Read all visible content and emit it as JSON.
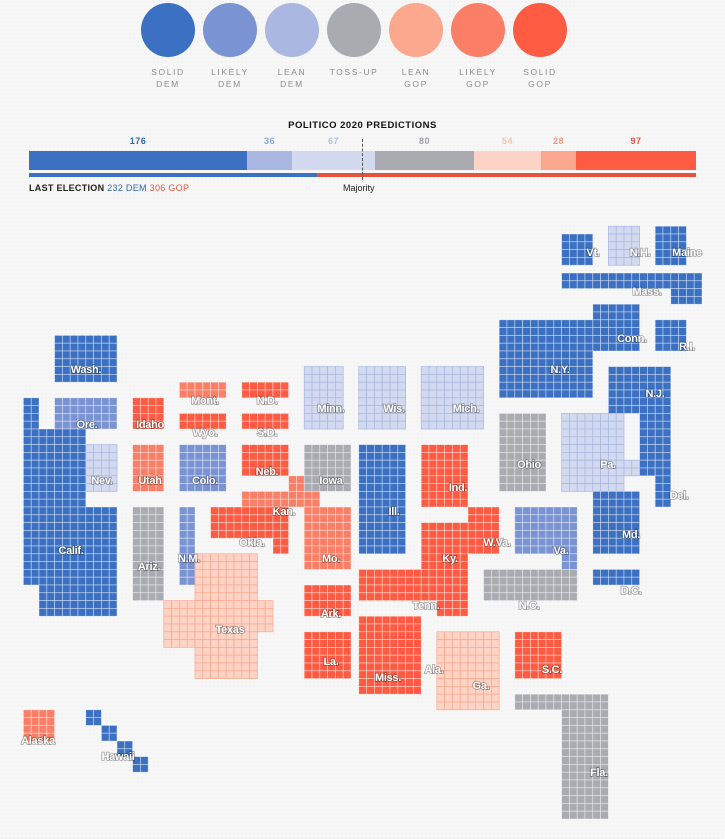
{
  "colors": {
    "solid_dem": "#3b70c2",
    "likely_dem": "#7993d3",
    "lean_dem": "#a9b7e1",
    "lean_dem_fill": "#d3daf0",
    "tossup": "#a9abb1",
    "lean_gop": "#fba88e",
    "lean_gop_fill": "#fdd3c5",
    "likely_gop": "#fb7f67",
    "solid_gop": "#fd5b42",
    "dem_text": "#2e66b8",
    "gop_text": "#e4543d"
  },
  "legend": [
    {
      "key": "solid_dem",
      "label": "SOLID\nDEM"
    },
    {
      "key": "likely_dem",
      "label": "LIKELY\nDEM"
    },
    {
      "key": "lean_dem",
      "label": "LEAN\nDEM"
    },
    {
      "key": "tossup",
      "label": "TOSS-UP"
    },
    {
      "key": "lean_gop",
      "label": "LEAN\nGOP"
    },
    {
      "key": "likely_gop",
      "label": "LIKELY\nGOP"
    },
    {
      "key": "solid_gop",
      "label": "SOLID\nGOP"
    }
  ],
  "predictions": {
    "title": "POLITICO 2020 PREDICTIONS",
    "segments": [
      {
        "key": "solid_dem",
        "count": "176"
      },
      {
        "key": "likely_dem",
        "count": "36"
      },
      {
        "key": "lean_dem",
        "count": "67"
      },
      {
        "key": "tossup",
        "count": "80"
      },
      {
        "key": "lean_gop",
        "count": "54"
      },
      {
        "key": "likely_gop",
        "count": "28"
      },
      {
        "key": "solid_gop",
        "count": "97"
      }
    ],
    "majority_label": "Majority",
    "last_election": {
      "prefix": "LAST ELECTION",
      "dem": "232 DEM",
      "gop": "306 GOP"
    }
  },
  "states": [
    {
      "name": "Vt.",
      "rating": "solid_dem"
    },
    {
      "name": "N.H.",
      "rating": "lean_dem"
    },
    {
      "name": "Maine",
      "rating": "solid_dem"
    },
    {
      "name": "Mass.",
      "rating": "solid_dem"
    },
    {
      "name": "Conn.",
      "rating": "solid_dem"
    },
    {
      "name": "R.I.",
      "rating": "solid_dem"
    },
    {
      "name": "N.Y.",
      "rating": "solid_dem"
    },
    {
      "name": "N.J.",
      "rating": "solid_dem"
    },
    {
      "name": "Wash.",
      "rating": "solid_dem"
    },
    {
      "name": "Mont.",
      "rating": "likely_gop"
    },
    {
      "name": "N.D.",
      "rating": "solid_gop"
    },
    {
      "name": "Minn.",
      "rating": "lean_dem"
    },
    {
      "name": "Wis.",
      "rating": "lean_dem"
    },
    {
      "name": "Mich.",
      "rating": "lean_dem"
    },
    {
      "name": "Ore.",
      "rating": "likely_dem"
    },
    {
      "name": "Idaho",
      "rating": "solid_gop"
    },
    {
      "name": "Wyo.",
      "rating": "solid_gop"
    },
    {
      "name": "S.D.",
      "rating": "solid_gop"
    },
    {
      "name": "Ohio",
      "rating": "tossup"
    },
    {
      "name": "Pa.",
      "rating": "lean_dem"
    },
    {
      "name": "Nev.",
      "rating": "lean_dem"
    },
    {
      "name": "Utah",
      "rating": "likely_gop"
    },
    {
      "name": "Colo.",
      "rating": "likely_dem"
    },
    {
      "name": "Neb.",
      "rating": "solid_gop"
    },
    {
      "name": "Iowa",
      "rating": "tossup"
    },
    {
      "name": "Ill.",
      "rating": "solid_dem"
    },
    {
      "name": "Ind.",
      "rating": "solid_gop"
    },
    {
      "name": "Del.",
      "rating": "solid_dem"
    },
    {
      "name": "Kan.",
      "rating": "likely_gop"
    },
    {
      "name": "Calif.",
      "rating": "solid_dem"
    },
    {
      "name": "Okla.",
      "rating": "solid_gop"
    },
    {
      "name": "W.Va.",
      "rating": "solid_gop"
    },
    {
      "name": "Md.",
      "rating": "solid_dem"
    },
    {
      "name": "Va.",
      "rating": "likely_dem"
    },
    {
      "name": "Mo.",
      "rating": "likely_gop"
    },
    {
      "name": "Ky.",
      "rating": "solid_gop"
    },
    {
      "name": "Ariz.",
      "rating": "tossup"
    },
    {
      "name": "N.M.",
      "rating": "likely_dem"
    },
    {
      "name": "D.C.",
      "rating": "solid_dem"
    },
    {
      "name": "Tenn.",
      "rating": "solid_gop"
    },
    {
      "name": "N.C.",
      "rating": "tossup"
    },
    {
      "name": "Ark.",
      "rating": "solid_gop"
    },
    {
      "name": "Texas",
      "rating": "lean_gop"
    },
    {
      "name": "S.C.",
      "rating": "solid_gop"
    },
    {
      "name": "La.",
      "rating": "solid_gop"
    },
    {
      "name": "Miss.",
      "rating": "solid_gop"
    },
    {
      "name": "Ala.",
      "rating": "solid_gop"
    },
    {
      "name": "Ga.",
      "rating": "lean_gop"
    },
    {
      "name": "Alaska",
      "rating": "likely_gop"
    },
    {
      "name": "Hawaii",
      "rating": "solid_dem"
    },
    {
      "name": "Fla.",
      "rating": "tossup"
    }
  ]
}
